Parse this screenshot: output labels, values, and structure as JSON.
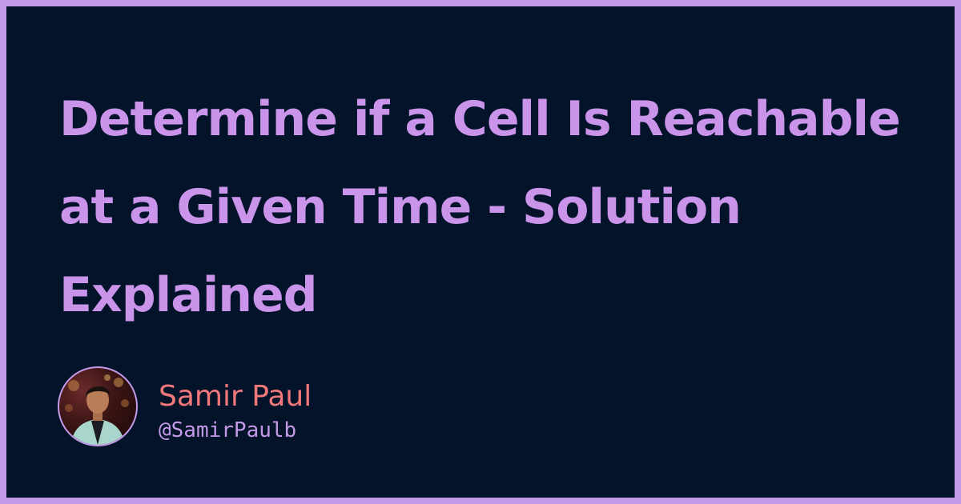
{
  "article": {
    "title": "Determine if a Cell Is Reachable at a Given Time - Solution Explained"
  },
  "author": {
    "name": "Samir Paul",
    "handle": "@SamirPaulb"
  },
  "icons": {
    "avatar": "profile-photo"
  },
  "colors": {
    "border": "#c49ae8",
    "background": "#02132a",
    "title": "#c994ea",
    "author_name": "#f2787a",
    "handle": "#c49ae8"
  }
}
